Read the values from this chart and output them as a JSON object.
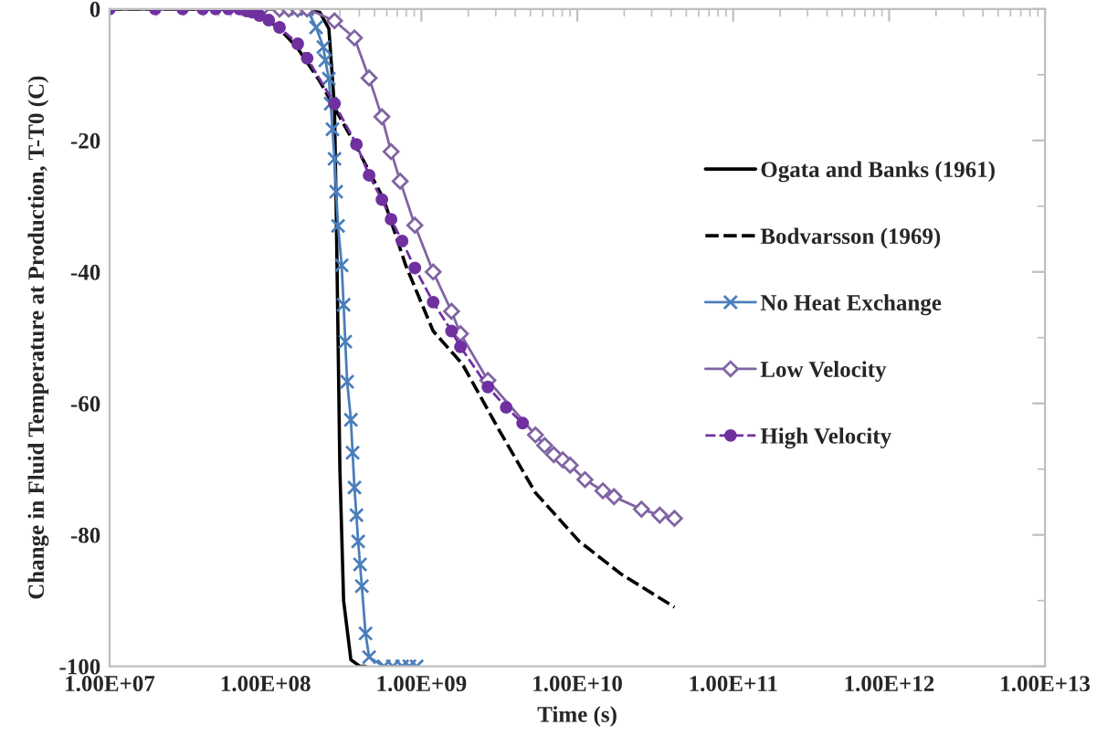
{
  "chart_data": {
    "type": "line",
    "xlabel": "Time (s)",
    "ylabel": "Change in Fluid Temperature at Production, T-T0 (C)",
    "log": "x",
    "xlim": [
      10000000.0,
      10000000000000.0
    ],
    "xticks": [
      {
        "value": 10000000.0,
        "label": "1.00E+07"
      },
      {
        "value": 100000000.0,
        "label": "1.00E+08"
      },
      {
        "value": 1000000000.0,
        "label": "1.00E+09"
      },
      {
        "value": 10000000000.0,
        "label": "1.00E+10"
      },
      {
        "value": 100000000000.0,
        "label": "1.00E+11"
      },
      {
        "value": 1000000000000.0,
        "label": "1.00E+12"
      },
      {
        "value": 10000000000000.0,
        "label": "1.00E+13"
      }
    ],
    "ylim": [
      -100,
      0
    ],
    "yticks": [
      0,
      -20,
      -40,
      -60,
      -80,
      -100
    ],
    "grid": false,
    "legend": "right",
    "series": [
      {
        "name": "Ogata and Banks (1961)",
        "color": "#000000",
        "line_style": "solid",
        "marker": "none",
        "x": [
          10000000.0,
          157000000.0,
          223000000.0,
          255000000.0,
          277000000.0,
          284000000.0,
          292000000.0,
          300000000.0,
          317000000.0,
          353000000.0,
          404000000.0,
          438000000.0
        ],
        "values": [
          0,
          0,
          -0.5,
          -3,
          -15,
          -30,
          -50,
          -70,
          -90,
          -99,
          -100,
          -100
        ]
      },
      {
        "name": "Bodvarsson (1969)",
        "color": "#000000",
        "line_style": "dashed",
        "marker": "none",
        "x": [
          10000000.0,
          66200000.0,
          94000000.0,
          123000000.0,
          161000000.0,
          223000000.0,
          277000000.0,
          383000000.0,
          574000000.0,
          793000000.0,
          1190000000.0,
          1830000000.0,
          3140000000.0,
          5390000000.0,
          10300000000.0,
          19200000000.0,
          42000000000.0
        ],
        "values": [
          0,
          0,
          -1,
          -3,
          -6,
          -11,
          -15,
          -21,
          -29,
          -39,
          -49,
          -54,
          -64,
          -73.6,
          -81,
          -86,
          -91
        ]
      },
      {
        "name": "No Heat Exchange",
        "color": "#4a7ebb",
        "line_style": "solid",
        "marker": "cross",
        "x": [
          137000000.0,
          157000000.0,
          185000000.0,
          211000000.0,
          235000000.0,
          242000000.0,
          255000000.0,
          262000000.0,
          269000000.0,
          277000000.0,
          284000000.0,
          292000000.0,
          308000000.0,
          317000000.0,
          325000000.0,
          334000000.0,
          353000000.0,
          362000000.0,
          372000000.0,
          383000000.0,
          393000000.0,
          404000000.0,
          415000000.0,
          438000000.0,
          462000000.0,
          574000000.0,
          656000000.0,
          752000000.0,
          837000000.0,
          933000000.0
        ],
        "values": [
          0,
          0,
          0,
          -2.8,
          -5.8,
          -7.8,
          -10.6,
          -14.4,
          -18.3,
          -22.8,
          -27.8,
          -33,
          -39,
          -45,
          -50.6,
          -56.7,
          -62.5,
          -67.5,
          -72.8,
          -77,
          -81,
          -84.5,
          -87.8,
          -95,
          -98.6,
          -100,
          -100,
          -100,
          -100,
          -100
        ]
      },
      {
        "name": "Low Velocity",
        "color": "#8064a2",
        "line_style": "solid",
        "marker": "diamond",
        "x": [
          94000000.0,
          123000000.0,
          141000000.0,
          161000000.0,
          185000000.0,
          277000000.0,
          372000000.0,
          462000000.0,
          558000000.0,
          639000000.0,
          731000000.0,
          908000000.0,
          1190000000.0,
          1560000000.0,
          1780000000.0,
          2670000000.0,
          5390000000.0,
          6170000000.0,
          7060000000.0,
          8070000000.0,
          9000000000.0,
          11200000000.0,
          14600000000.0,
          17200000000.0,
          25800000000.0,
          33800000000.0,
          42000000000.0
        ],
        "values": [
          0,
          0,
          0,
          0,
          0,
          -1.8,
          -4.4,
          -10.5,
          -16.4,
          -21.7,
          -26.2,
          -32.9,
          -40,
          -46,
          -49.4,
          -56.5,
          -64.8,
          -66.4,
          -67.8,
          -68.6,
          -69.4,
          -71.6,
          -73.3,
          -74.2,
          -76.1,
          -77,
          -77.5
        ]
      },
      {
        "name": "High Velocity",
        "color": "#7030a0",
        "line_style": "dashed",
        "marker": "circle",
        "x": [
          10000000.0,
          19600000.0,
          29400000.0,
          39600000.0,
          47900000.0,
          57800000.0,
          68000000.0,
          75700000.0,
          82100000.0,
          91500000.0,
          105000000.0,
          123000000.0,
          161000000.0,
          185000000.0,
          277000000.0,
          383000000.0,
          462000000.0,
          558000000.0,
          639000000.0,
          752000000.0,
          908000000.0,
          1190000000.0,
          1560000000.0,
          1780000000.0,
          2670000000.0,
          3500000000.0,
          4460000000.0
        ],
        "values": [
          0,
          0,
          0,
          0,
          0,
          0,
          0,
          -0.3,
          -0.5,
          -1,
          -1.7,
          -2.8,
          -5.3,
          -7.5,
          -14.4,
          -20.6,
          -25.3,
          -29,
          -32,
          -35.3,
          -39.4,
          -44.6,
          -49,
          -51.4,
          -57.5,
          -60.6,
          -63
        ]
      }
    ]
  }
}
